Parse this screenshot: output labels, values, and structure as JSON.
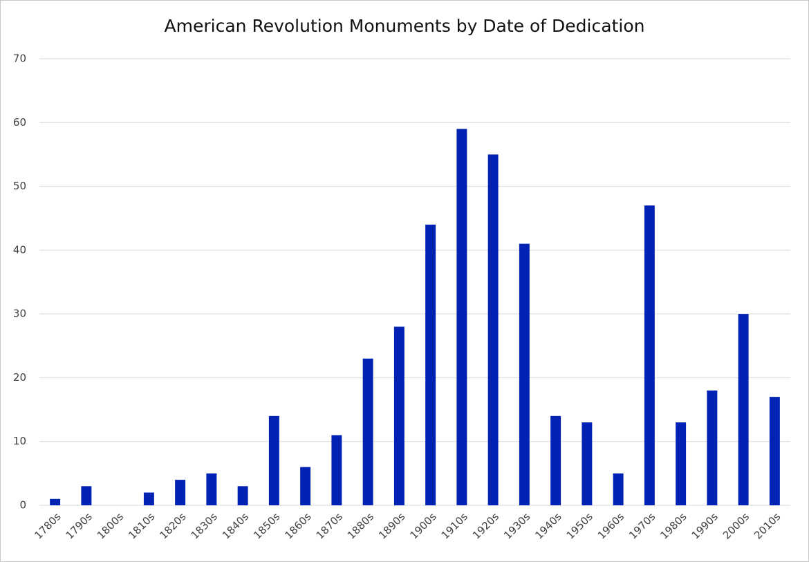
{
  "chart_data": {
    "type": "bar",
    "title": "American Revolution Monuments by Date of Dedication",
    "categories": [
      "1780s",
      "1790s",
      "1800s",
      "1810s",
      "1820s",
      "1830s",
      "1840s",
      "1850s",
      "1860s",
      "1870s",
      "1880s",
      "1890s",
      "1900s",
      "1910s",
      "1920s",
      "1930s",
      "1940s",
      "1950s",
      "1960s",
      "1970s",
      "1980s",
      "1990s",
      "2000s",
      "2010s"
    ],
    "values": [
      1,
      3,
      0,
      2,
      4,
      5,
      3,
      14,
      6,
      11,
      23,
      28,
      44,
      59,
      55,
      41,
      14,
      13,
      5,
      47,
      13,
      18,
      30,
      17
    ],
    "color": "#0222b4",
    "ylim": [
      0,
      70
    ],
    "yticks": [
      0,
      10,
      20,
      30,
      40,
      50,
      60,
      70
    ],
    "grid": true
  }
}
